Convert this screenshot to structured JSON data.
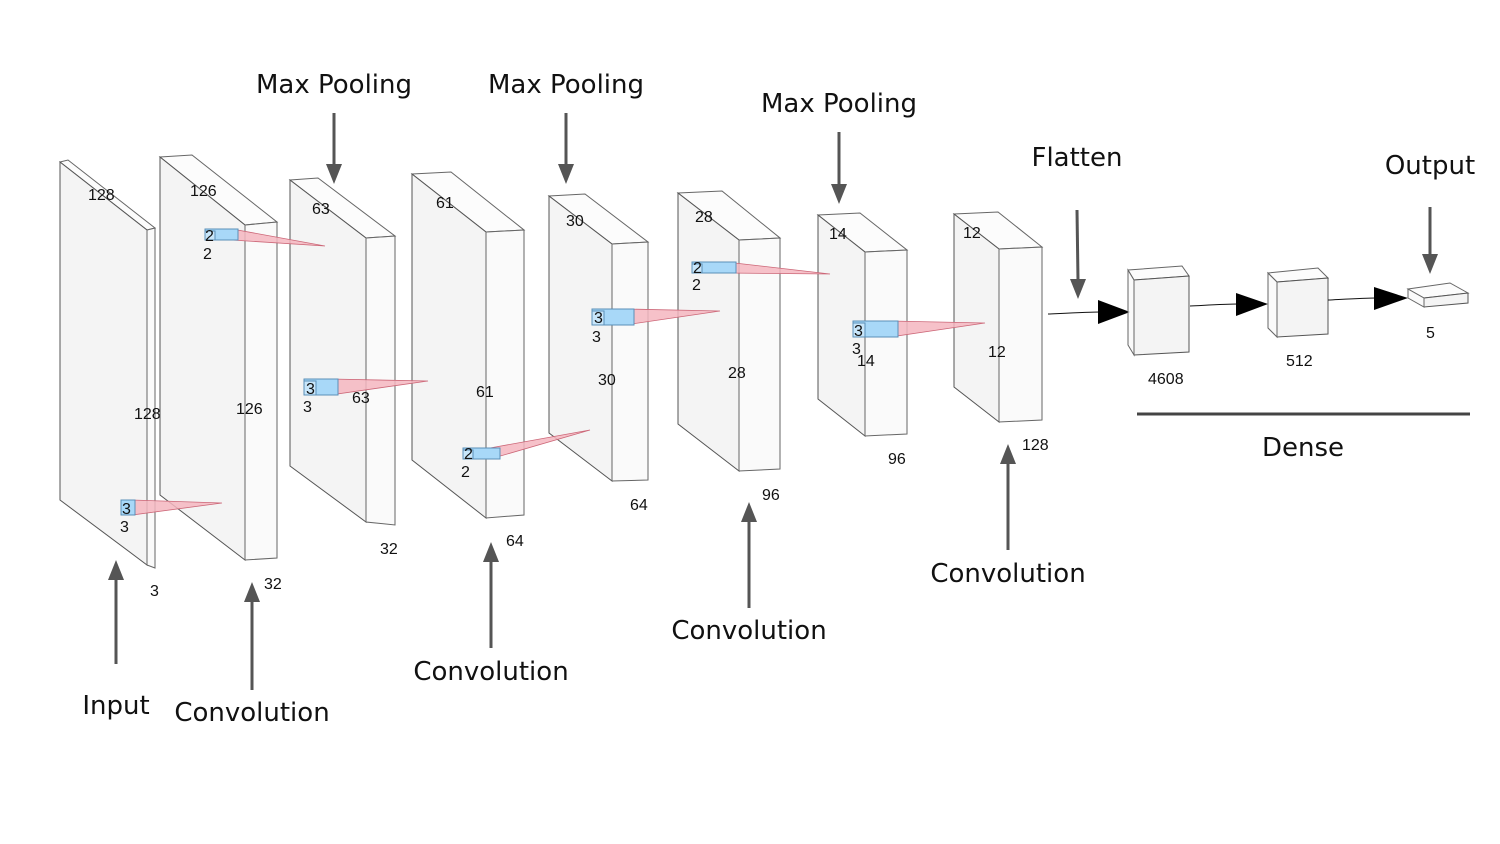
{
  "layers": [
    {
      "kind": "input",
      "height": "128",
      "width": "128",
      "depth": "3"
    },
    {
      "kind": "conv",
      "height": "126",
      "width": "126",
      "depth": "32"
    },
    {
      "kind": "pool",
      "height": "63",
      "width": "63",
      "depth": "32"
    },
    {
      "kind": "conv",
      "height": "61",
      "width": "61",
      "depth": "64"
    },
    {
      "kind": "pool",
      "height": "30",
      "width": "30",
      "depth": "64"
    },
    {
      "kind": "conv",
      "height": "28",
      "width": "28",
      "depth": "96"
    },
    {
      "kind": "pool",
      "height": "14",
      "width": "14",
      "depth": "96"
    },
    {
      "kind": "conv",
      "height": "12",
      "width": "12",
      "depth": "128"
    }
  ],
  "kernels": [
    {
      "a": "3",
      "b": "3"
    },
    {
      "a": "2",
      "b": "2"
    },
    {
      "a": "3",
      "b": "3"
    },
    {
      "a": "2",
      "b": "2"
    },
    {
      "a": "3",
      "b": "3"
    },
    {
      "a": "2",
      "b": "2"
    },
    {
      "a": "3",
      "b": "3"
    }
  ],
  "dense": [
    {
      "units": "4608"
    },
    {
      "units": "512"
    },
    {
      "units": "5"
    }
  ],
  "labels": {
    "input": "Input",
    "conv": "Convolution",
    "pool": "Max Pooling",
    "flatten": "Flatten",
    "output": "Output",
    "dense": "Dense"
  }
}
